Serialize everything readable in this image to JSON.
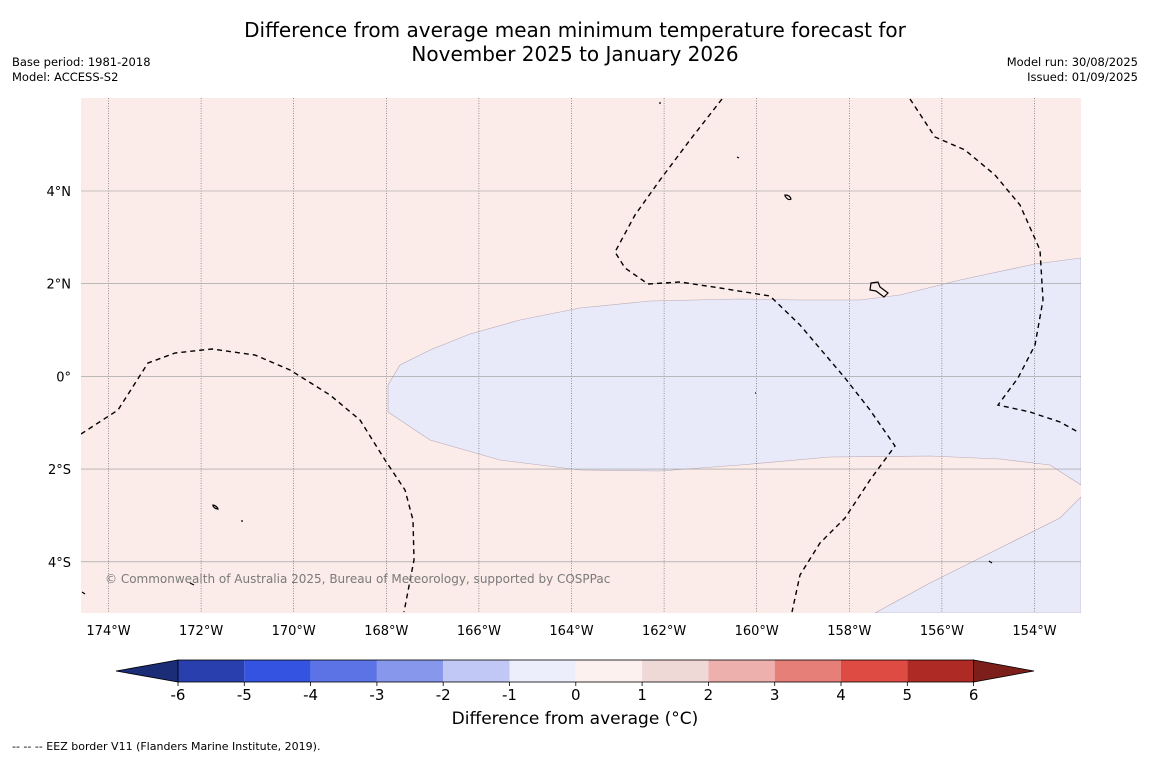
{
  "title": {
    "line1": "Difference from average mean minimum temperature forecast for",
    "line2": "November 2025 to January 2026"
  },
  "meta": {
    "base_period": "Base period: 1981-2018",
    "model": "Model: ACCESS-S2",
    "model_run": "Model run: 30/08/2025",
    "issued": "Issued: 01/09/2025"
  },
  "map": {
    "copyright": "© Commonwealth of Australia 2025, Bureau of Meteorology, supported by COSPPac",
    "lon_labels": [
      "174°W",
      "172°W",
      "170°W",
      "168°W",
      "166°W",
      "164°W",
      "162°W",
      "160°W",
      "158°W",
      "156°W",
      "154°W"
    ],
    "lat_labels": [
      "4°N",
      "2°N",
      "0°",
      "2°S",
      "4°S"
    ],
    "fill_colors": {
      "warm_0_to_1": "#fbebe9",
      "cool_minus1_to_0": "#e8eafa"
    }
  },
  "colorbar": {
    "ticks": [
      "-6",
      "-5",
      "-4",
      "-3",
      "-2",
      "-1",
      "0",
      "1",
      "2",
      "3",
      "4",
      "5",
      "6"
    ],
    "colors": [
      "#2a3fae",
      "#3353e0",
      "#5b73e5",
      "#8797ec",
      "#c2c8f5",
      "#eceefb",
      "#fdf1ef",
      "#efd9d7",
      "#eeb0ad",
      "#e67f78",
      "#de4b42",
      "#ae2a24"
    ],
    "low_extend_color": "#1c2d78",
    "high_extend_color": "#7c1f1a",
    "label": "Difference from average (°C)"
  },
  "footer": {
    "legend": "--  --  -- EEZ border V11 (Flanders Marine Institute, 2019)."
  }
}
